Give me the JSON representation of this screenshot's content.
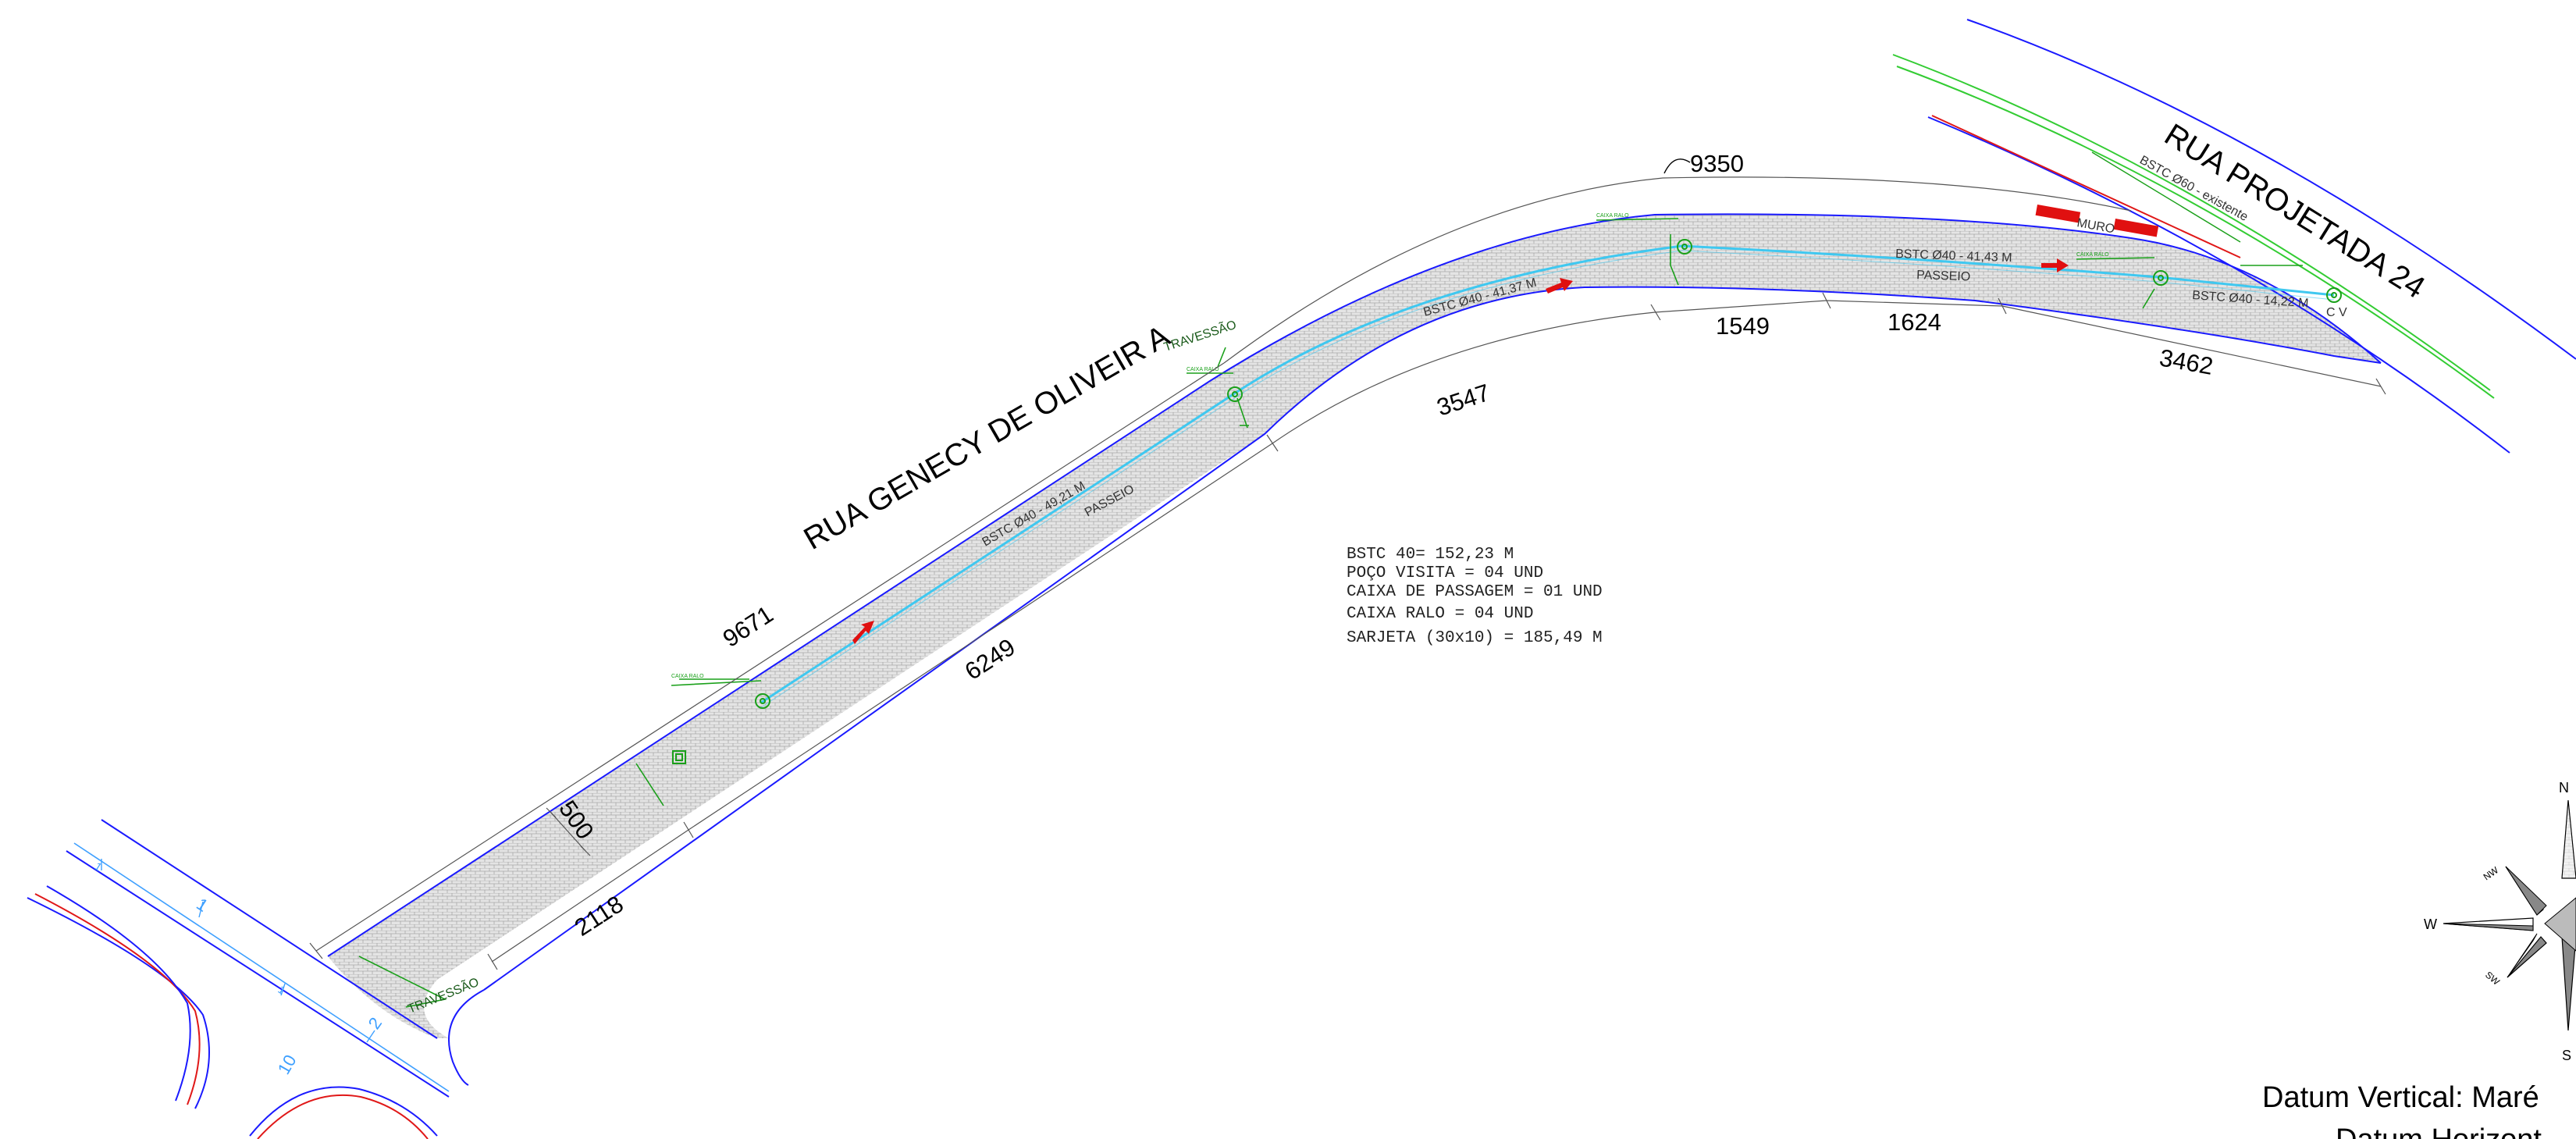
{
  "streets": {
    "main": "RUA GENECY DE OLIVEIR A",
    "side": "RUA PROJETADA 24"
  },
  "labels": {
    "travessao_1": "TRAVESSÃO",
    "travessao_2": "TRAVESSÃO",
    "passeio_1": "PASSEIO",
    "passeio_2": "PASSEIO",
    "muro": "MURO",
    "cv": "C V"
  },
  "dimensions": {
    "d9671": "9671",
    "d9350": "9350",
    "d6249": "6249",
    "d3547": "3547",
    "d1549": "1549",
    "d1624": "1624",
    "d3462": "3462",
    "d2118": "2118",
    "d500": "500"
  },
  "pipes": {
    "seg1": "BSTC Ø40 - 49,21 M",
    "seg2": "BSTC Ø40 - 41,37 M",
    "seg3": "BSTC Ø40 - 41,43 M",
    "seg4": "BSTC Ø40 - 14,22 M",
    "existing": "BSTC Ø60 - existente"
  },
  "notes": [
    "BSTC 40= 152,23 M",
    "POÇO VISITA = 04 UND",
    "CAIXA DE PASSAGEM = 01 UND",
    "CAIXA RALO = 04 UND",
    "SARJETA (30x10) = 185,49 M"
  ],
  "compass": {
    "n": "N",
    "w": "W",
    "s": "S",
    "nw": "NW",
    "sw": "SW"
  },
  "datum": {
    "vertical": "Datum Vertical: Maré",
    "horizontal": "Datum Horizont"
  },
  "lot_numbers": [
    "1",
    "1",
    "2",
    "1",
    "10"
  ],
  "colors": {
    "road_edge": "#1a1aff",
    "pipe": "#3fc8f0",
    "drainage": "#1aa01a",
    "curb_red": "#e01818",
    "flow_arrow": "#e01010",
    "paving": "#d9d9d9",
    "dimension_line": "#555555"
  }
}
